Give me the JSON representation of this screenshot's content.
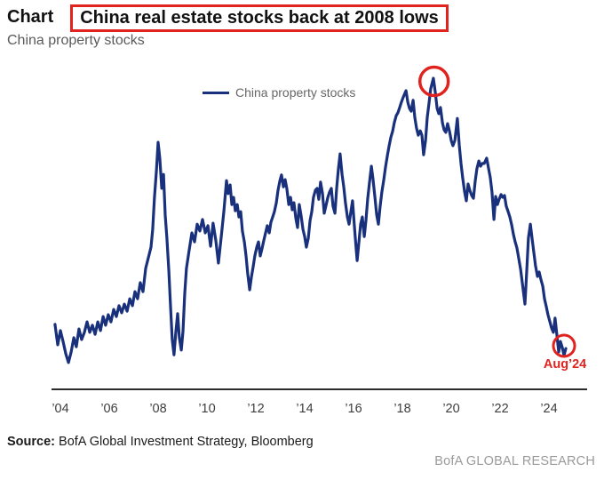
{
  "header": {
    "kicker": "Chart",
    "title": "China real estate stocks back at 2008 lows",
    "subtitle": "China property stocks"
  },
  "source": {
    "label": "Source:",
    "text": "BofA Global Investment Strategy, Bloomberg"
  },
  "brand": "BofA GLOBAL RESEARCH",
  "chart_data": {
    "type": "line",
    "title": "China real estate stocks back at 2008 lows",
    "subtitle": "China property stocks",
    "legend": [
      "China property stocks"
    ],
    "legend_position": "top-center",
    "xlabel": "",
    "ylabel": "",
    "xlim": [
      2003.6,
      2025.6
    ],
    "ylim": [
      0,
      101
    ],
    "grid": false,
    "y_axis_visible": false,
    "x_ticks": [
      {
        "year": 2004,
        "label": "’04"
      },
      {
        "year": 2006,
        "label": "’06"
      },
      {
        "year": 2008,
        "label": "’08"
      },
      {
        "year": 2010,
        "label": "’10"
      },
      {
        "year": 2012,
        "label": "’12"
      },
      {
        "year": 2014,
        "label": "’14"
      },
      {
        "year": 2016,
        "label": "’16"
      },
      {
        "year": 2018,
        "label": "’18"
      },
      {
        "year": 2020,
        "label": "’20"
      },
      {
        "year": 2022,
        "label": "’22"
      },
      {
        "year": 2024,
        "label": "’24"
      }
    ],
    "colors": {
      "line": "#19307c",
      "accent": "#e0231f",
      "axis": "#2b2b2b",
      "tick_text": "#3d3d3d"
    },
    "annotations": [
      {
        "type": "circle",
        "year": 2019.3,
        "value": 99,
        "radius_px": 16,
        "stroke_px": 3.5,
        "label": ""
      },
      {
        "type": "circle",
        "year": 2024.62,
        "value": 14,
        "radius_px": 12,
        "stroke_px": 3,
        "label": "Aug’24"
      }
    ],
    "series": [
      {
        "name": "China property stocks",
        "points": [
          [
            2003.78,
            20.9
          ],
          [
            2003.89,
            14.3
          ],
          [
            2004.0,
            18.9
          ],
          [
            2004.11,
            15.4
          ],
          [
            2004.22,
            11.4
          ],
          [
            2004.33,
            8.6
          ],
          [
            2004.44,
            12.0
          ],
          [
            2004.55,
            16.6
          ],
          [
            2004.65,
            13.7
          ],
          [
            2004.76,
            19.4
          ],
          [
            2004.87,
            16.0
          ],
          [
            2004.98,
            18.3
          ],
          [
            2005.09,
            21.7
          ],
          [
            2005.2,
            18.3
          ],
          [
            2005.31,
            20.6
          ],
          [
            2005.42,
            17.7
          ],
          [
            2005.53,
            21.7
          ],
          [
            2005.64,
            18.9
          ],
          [
            2005.75,
            23.4
          ],
          [
            2005.85,
            20.6
          ],
          [
            2005.96,
            24.0
          ],
          [
            2006.07,
            21.7
          ],
          [
            2006.18,
            25.7
          ],
          [
            2006.29,
            23.4
          ],
          [
            2006.4,
            26.9
          ],
          [
            2006.51,
            24.6
          ],
          [
            2006.62,
            27.4
          ],
          [
            2006.73,
            25.1
          ],
          [
            2006.84,
            29.1
          ],
          [
            2006.95,
            26.9
          ],
          [
            2007.05,
            31.4
          ],
          [
            2007.16,
            29.1
          ],
          [
            2007.27,
            34.3
          ],
          [
            2007.38,
            31.4
          ],
          [
            2007.49,
            38.9
          ],
          [
            2007.6,
            42.3
          ],
          [
            2007.71,
            45.7
          ],
          [
            2007.78,
            51.4
          ],
          [
            2007.85,
            61.7
          ],
          [
            2007.93,
            70.3
          ],
          [
            2008.0,
            79.4
          ],
          [
            2008.07,
            74.3
          ],
          [
            2008.15,
            64.6
          ],
          [
            2008.22,
            69.1
          ],
          [
            2008.29,
            56.0
          ],
          [
            2008.36,
            48.6
          ],
          [
            2008.44,
            38.0
          ],
          [
            2008.51,
            26.6
          ],
          [
            2008.58,
            16.0
          ],
          [
            2008.65,
            11.1
          ],
          [
            2008.73,
            18.9
          ],
          [
            2008.8,
            24.3
          ],
          [
            2008.87,
            16.6
          ],
          [
            2008.95,
            12.6
          ],
          [
            2009.02,
            18.6
          ],
          [
            2009.09,
            30.9
          ],
          [
            2009.16,
            38.9
          ],
          [
            2009.27,
            44.6
          ],
          [
            2009.38,
            50.3
          ],
          [
            2009.49,
            47.4
          ],
          [
            2009.6,
            53.1
          ],
          [
            2009.71,
            50.9
          ],
          [
            2009.82,
            54.6
          ],
          [
            2009.93,
            50.3
          ],
          [
            2010.04,
            52.6
          ],
          [
            2010.15,
            46.0
          ],
          [
            2010.25,
            53.4
          ],
          [
            2010.36,
            48.0
          ],
          [
            2010.47,
            40.6
          ],
          [
            2010.58,
            48.6
          ],
          [
            2010.69,
            57.1
          ],
          [
            2010.8,
            67.1
          ],
          [
            2010.87,
            62.9
          ],
          [
            2010.95,
            65.7
          ],
          [
            2011.02,
            59.4
          ],
          [
            2011.09,
            61.7
          ],
          [
            2011.16,
            57.4
          ],
          [
            2011.24,
            59.4
          ],
          [
            2011.31,
            55.4
          ],
          [
            2011.38,
            57.1
          ],
          [
            2011.45,
            50.9
          ],
          [
            2011.53,
            47.4
          ],
          [
            2011.6,
            42.9
          ],
          [
            2011.67,
            37.1
          ],
          [
            2011.75,
            32.0
          ],
          [
            2011.82,
            36.0
          ],
          [
            2011.89,
            39.4
          ],
          [
            2011.96,
            42.9
          ],
          [
            2012.04,
            45.7
          ],
          [
            2012.11,
            47.4
          ],
          [
            2012.18,
            42.9
          ],
          [
            2012.25,
            45.1
          ],
          [
            2012.33,
            48.0
          ],
          [
            2012.4,
            50.3
          ],
          [
            2012.47,
            52.6
          ],
          [
            2012.55,
            50.3
          ],
          [
            2012.62,
            53.7
          ],
          [
            2012.69,
            55.4
          ],
          [
            2012.76,
            57.1
          ],
          [
            2012.84,
            60.0
          ],
          [
            2012.91,
            64.0
          ],
          [
            2012.98,
            66.9
          ],
          [
            2013.05,
            68.9
          ],
          [
            2013.13,
            65.1
          ],
          [
            2013.2,
            67.4
          ],
          [
            2013.27,
            64.6
          ],
          [
            2013.35,
            59.4
          ],
          [
            2013.42,
            61.7
          ],
          [
            2013.49,
            57.7
          ],
          [
            2013.56,
            60.0
          ],
          [
            2013.64,
            54.9
          ],
          [
            2013.71,
            52.0
          ],
          [
            2013.78,
            59.4
          ],
          [
            2013.85,
            56.0
          ],
          [
            2013.93,
            51.4
          ],
          [
            2014.0,
            49.1
          ],
          [
            2014.07,
            45.7
          ],
          [
            2014.15,
            48.6
          ],
          [
            2014.22,
            54.3
          ],
          [
            2014.29,
            57.1
          ],
          [
            2014.36,
            61.7
          ],
          [
            2014.44,
            64.0
          ],
          [
            2014.51,
            64.6
          ],
          [
            2014.58,
            61.1
          ],
          [
            2014.65,
            66.6
          ],
          [
            2014.73,
            62.9
          ],
          [
            2014.8,
            56.6
          ],
          [
            2014.87,
            58.9
          ],
          [
            2014.95,
            61.7
          ],
          [
            2015.02,
            63.4
          ],
          [
            2015.09,
            64.6
          ],
          [
            2015.16,
            58.9
          ],
          [
            2015.24,
            56.6
          ],
          [
            2015.31,
            64.6
          ],
          [
            2015.38,
            70.9
          ],
          [
            2015.45,
            75.7
          ],
          [
            2015.53,
            69.1
          ],
          [
            2015.6,
            65.1
          ],
          [
            2015.67,
            60.0
          ],
          [
            2015.75,
            55.4
          ],
          [
            2015.82,
            53.1
          ],
          [
            2015.89,
            57.1
          ],
          [
            2015.96,
            60.6
          ],
          [
            2016.04,
            52.0
          ],
          [
            2016.11,
            45.1
          ],
          [
            2016.15,
            41.4
          ],
          [
            2016.22,
            47.4
          ],
          [
            2016.29,
            53.1
          ],
          [
            2016.36,
            55.4
          ],
          [
            2016.44,
            49.1
          ],
          [
            2016.51,
            54.3
          ],
          [
            2016.58,
            61.1
          ],
          [
            2016.65,
            66.3
          ],
          [
            2016.73,
            71.7
          ],
          [
            2016.8,
            67.4
          ],
          [
            2016.87,
            62.3
          ],
          [
            2016.95,
            56.0
          ],
          [
            2017.02,
            53.1
          ],
          [
            2017.09,
            58.9
          ],
          [
            2017.16,
            63.4
          ],
          [
            2017.24,
            67.4
          ],
          [
            2017.31,
            71.4
          ],
          [
            2017.38,
            74.9
          ],
          [
            2017.45,
            78.0
          ],
          [
            2017.53,
            81.1
          ],
          [
            2017.6,
            82.9
          ],
          [
            2017.67,
            85.7
          ],
          [
            2017.75,
            88.0
          ],
          [
            2017.82,
            88.9
          ],
          [
            2017.89,
            90.6
          ],
          [
            2017.96,
            92.3
          ],
          [
            2018.04,
            94.0
          ],
          [
            2018.15,
            96.0
          ],
          [
            2018.22,
            92.3
          ],
          [
            2018.29,
            90.3
          ],
          [
            2018.36,
            89.4
          ],
          [
            2018.44,
            92.9
          ],
          [
            2018.51,
            87.4
          ],
          [
            2018.58,
            84.0
          ],
          [
            2018.65,
            81.7
          ],
          [
            2018.73,
            83.1
          ],
          [
            2018.8,
            81.7
          ],
          [
            2018.87,
            75.4
          ],
          [
            2018.95,
            80.0
          ],
          [
            2019.02,
            87.4
          ],
          [
            2019.09,
            92.0
          ],
          [
            2019.16,
            96.6
          ],
          [
            2019.27,
            100.0
          ],
          [
            2019.35,
            95.4
          ],
          [
            2019.42,
            90.3
          ],
          [
            2019.49,
            88.6
          ],
          [
            2019.56,
            90.6
          ],
          [
            2019.64,
            85.7
          ],
          [
            2019.71,
            83.4
          ],
          [
            2019.78,
            82.6
          ],
          [
            2019.85,
            85.4
          ],
          [
            2019.93,
            82.9
          ],
          [
            2020.0,
            80.0
          ],
          [
            2020.07,
            78.3
          ],
          [
            2020.15,
            80.0
          ],
          [
            2020.22,
            85.1
          ],
          [
            2020.25,
            87.1
          ],
          [
            2020.33,
            78.3
          ],
          [
            2020.4,
            72.6
          ],
          [
            2020.47,
            68.0
          ],
          [
            2020.55,
            63.4
          ],
          [
            2020.62,
            60.6
          ],
          [
            2020.69,
            66.0
          ],
          [
            2020.76,
            64.0
          ],
          [
            2020.84,
            62.3
          ],
          [
            2020.91,
            61.4
          ],
          [
            2020.98,
            66.9
          ],
          [
            2021.05,
            70.9
          ],
          [
            2021.13,
            73.4
          ],
          [
            2021.2,
            71.7
          ],
          [
            2021.27,
            72.6
          ],
          [
            2021.35,
            72.6
          ],
          [
            2021.45,
            74.3
          ],
          [
            2021.53,
            70.9
          ],
          [
            2021.6,
            68.0
          ],
          [
            2021.67,
            63.4
          ],
          [
            2021.75,
            54.6
          ],
          [
            2021.82,
            62.0
          ],
          [
            2021.89,
            59.4
          ],
          [
            2021.96,
            61.1
          ],
          [
            2022.04,
            62.6
          ],
          [
            2022.11,
            61.7
          ],
          [
            2022.18,
            62.3
          ],
          [
            2022.25,
            58.9
          ],
          [
            2022.33,
            57.1
          ],
          [
            2022.4,
            55.4
          ],
          [
            2022.47,
            53.1
          ],
          [
            2022.55,
            49.7
          ],
          [
            2022.62,
            47.4
          ],
          [
            2022.69,
            45.4
          ],
          [
            2022.76,
            42.3
          ],
          [
            2022.84,
            38.6
          ],
          [
            2022.91,
            34.3
          ],
          [
            2023.02,
            27.4
          ],
          [
            2023.09,
            38.0
          ],
          [
            2023.16,
            48.6
          ],
          [
            2023.24,
            53.1
          ],
          [
            2023.31,
            48.6
          ],
          [
            2023.38,
            44.0
          ],
          [
            2023.45,
            39.7
          ],
          [
            2023.53,
            36.3
          ],
          [
            2023.6,
            37.7
          ],
          [
            2023.67,
            35.4
          ],
          [
            2023.75,
            33.1
          ],
          [
            2023.82,
            29.1
          ],
          [
            2023.89,
            26.6
          ],
          [
            2023.96,
            24.0
          ],
          [
            2024.04,
            21.7
          ],
          [
            2024.11,
            19.7
          ],
          [
            2024.18,
            18.3
          ],
          [
            2024.25,
            22.9
          ],
          [
            2024.33,
            17.1
          ],
          [
            2024.4,
            12.0
          ],
          [
            2024.47,
            15.4
          ],
          [
            2024.55,
            13.4
          ],
          [
            2024.62,
            10.9
          ],
          [
            2024.69,
            13.1
          ]
        ]
      }
    ]
  }
}
